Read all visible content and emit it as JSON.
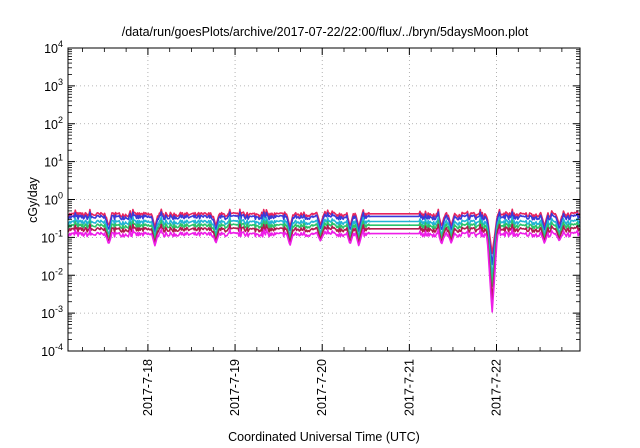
{
  "chart_data": {
    "type": "line",
    "title": "/data/run/goesPlots/archive/2017-07-22/22:00/flux/../bryn/5daysMoon.plot",
    "xlabel": "Coordinated Universal Time (UTC)",
    "ylabel": "cGy/day",
    "yscale": "log",
    "ylim": [
      0.0001,
      10000
    ],
    "y_ticks": [
      {
        "base": "10",
        "exp": "-4",
        "value": 0.0001
      },
      {
        "base": "10",
        "exp": "-3",
        "value": 0.001
      },
      {
        "base": "10",
        "exp": "-2",
        "value": 0.01
      },
      {
        "base": "10",
        "exp": "-1",
        "value": 0.1
      },
      {
        "base": "10",
        "exp": "0",
        "value": 1
      },
      {
        "base": "10",
        "exp": "1",
        "value": 10
      },
      {
        "base": "10",
        "exp": "2",
        "value": 100
      },
      {
        "base": "10",
        "exp": "3",
        "value": 1000
      },
      {
        "base": "10",
        "exp": "4",
        "value": 10000
      }
    ],
    "xlim": [
      "2017-07-17 02:00",
      "2017-07-22 23:00"
    ],
    "x_ticks": [
      "2017-7-18",
      "2017-7-19",
      "2017-7-20",
      "2017-7-21",
      "2017-7-22"
    ],
    "x_tick_days": [
      1,
      2,
      3,
      4,
      5
    ],
    "x_start_day_offset": 0.083,
    "x_end_day_offset": 5.958,
    "grid": true,
    "grid_style": "dotted",
    "legend": "none",
    "series": [
      {
        "color": "#e8245e",
        "base": 0.4,
        "dip_scale": 0.4
      },
      {
        "color": "#3a3ad8",
        "base": 0.34,
        "dip_scale": 0.5
      },
      {
        "color": "#22b4d6",
        "base": 0.25,
        "dip_scale": 0.6
      },
      {
        "color": "#2ac46a",
        "base": 0.2,
        "dip_scale": 0.7
      },
      {
        "color": "#b01a4e",
        "base": 0.16,
        "dip_scale": 0.85
      },
      {
        "color": "#ee1ee8",
        "base": 0.12,
        "dip_scale": 1.0
      }
    ],
    "plateau": {
      "from_day": 3.55,
      "to_day": 4.12,
      "factor": 1.05
    },
    "dips": [
      {
        "day": 0.55,
        "min": 0.065
      },
      {
        "day": 1.08,
        "min": 0.06
      },
      {
        "day": 1.78,
        "min": 0.07
      },
      {
        "day": 2.63,
        "min": 0.06
      },
      {
        "day": 2.98,
        "min": 0.08
      },
      {
        "day": 3.32,
        "min": 0.065
      },
      {
        "day": 3.42,
        "min": 0.06
      },
      {
        "day": 4.37,
        "min": 0.065
      },
      {
        "day": 4.48,
        "min": 0.07
      },
      {
        "day": 4.95,
        "min": 0.001
      },
      {
        "day": 5.55,
        "min": 0.07
      },
      {
        "day": 5.72,
        "min": 0.08
      }
    ]
  }
}
